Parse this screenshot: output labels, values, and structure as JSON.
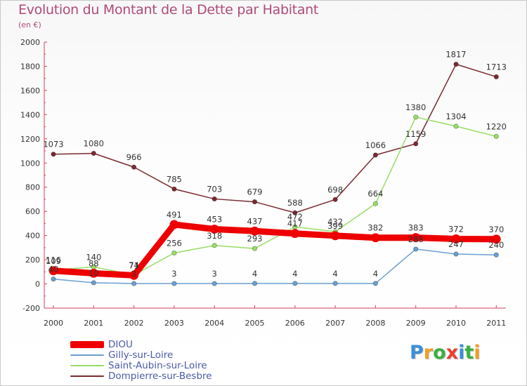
{
  "chart_data": {
    "type": "line",
    "title": "Evolution du Montant de la Dette par Habitant",
    "subtitle": "(en €)",
    "xlabel": "",
    "ylabel": "",
    "categories": [
      "2000",
      "2001",
      "2002",
      "2003",
      "2004",
      "2005",
      "2006",
      "2007",
      "2008",
      "2009",
      "2010",
      "2011"
    ],
    "ylim": [
      -200,
      2000
    ],
    "yticks": [
      "-200",
      "0",
      "200",
      "400",
      "600",
      "800",
      "1000",
      "1200",
      "1400",
      "1600",
      "1800",
      "2000"
    ],
    "grid": false,
    "legend_position": "bottom-left",
    "series": [
      {
        "name": "DIOU",
        "color": "#ee0000",
        "values": [
          109,
          88,
          71,
          491,
          453,
          437,
          417,
          399,
          382,
          383,
          372,
          370
        ],
        "labels": [
          "109",
          "88",
          "71",
          "491",
          "453",
          "437",
          "417",
          "399",
          "382",
          "383",
          "372",
          "370"
        ]
      },
      {
        "name": "Gilly-sur-Loire",
        "color": "#6b9fd0",
        "values": [
          40,
          10,
          3,
          3,
          3,
          4,
          4,
          4,
          4,
          288,
          247,
          240
        ],
        "labels": [
          "40",
          "10",
          "3",
          "3",
          "3",
          "4",
          "4",
          "4",
          "4",
          "288",
          "247",
          "240"
        ]
      },
      {
        "name": "Saint-Aubin-sur-Loire",
        "color": "#99dd66",
        "values": [
          116,
          140,
          74,
          256,
          318,
          293,
          472,
          432,
          664,
          1380,
          1304,
          1220
        ],
        "labels": [
          "116",
          "140",
          "74",
          "256",
          "318",
          "293",
          "472",
          "432",
          "664",
          "1380",
          "1304",
          "1220"
        ]
      },
      {
        "name": "Dompierre-sur-Besbre",
        "color": "#7a2a30",
        "values": [
          1073,
          1080,
          966,
          785,
          703,
          679,
          588,
          698,
          1066,
          1159,
          1817,
          1713
        ],
        "labels": [
          "1073",
          "1080",
          "966",
          "785",
          "703",
          "679",
          "588",
          "698",
          "1066",
          "1159",
          "1817",
          "1713"
        ]
      }
    ]
  },
  "brand": {
    "letters": [
      "P",
      "r",
      "o",
      "x",
      "i",
      "t",
      "i"
    ],
    "colors": [
      "#3a8fd8",
      "#f0a020",
      "#3ab040",
      "#e84030",
      "#3a8fd8",
      "#3ab040",
      "#f0a020"
    ]
  }
}
